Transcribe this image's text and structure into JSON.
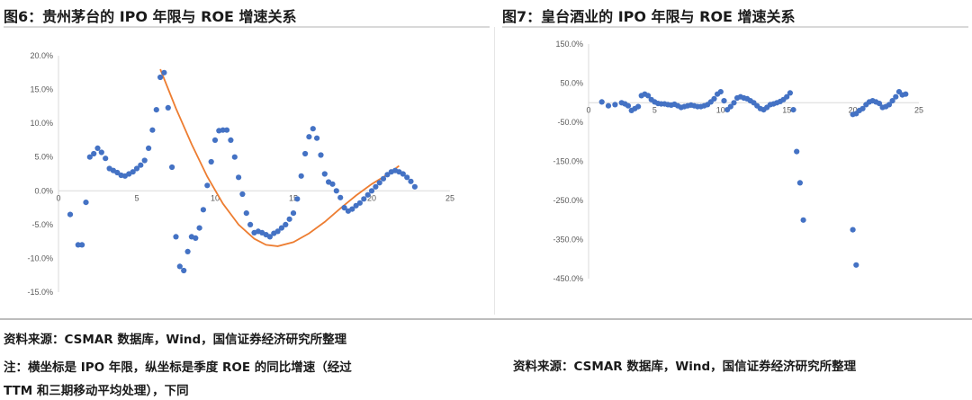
{
  "left": {
    "title": "图6：贵州茅台的 IPO 年限与 ROE 增速关系",
    "source": "资料来源：CSMAR 数据库，Wind，国信证券经济研究所整理",
    "note": "注：横坐标是 IPO 年限，纵坐标是季度 ROE 的同比增速（经过",
    "note2": "TTM 和三期移动平均处理），下同"
  },
  "right": {
    "title": "图7：皇台酒业的 IPO 年限与 ROE 增速关系",
    "source": "资料来源：CSMAR 数据库，Wind，国信证券经济研究所整理"
  },
  "colors": {
    "points": "#4472c4",
    "trend": "#ed7d31",
    "axis": "#d9d9d9",
    "text": "#595959"
  },
  "chart_data": [
    {
      "type": "scatter",
      "title": "图6：贵州茅台的 IPO 年限与 ROE 增速关系",
      "xlabel": "",
      "ylabel": "",
      "xlim": [
        0,
        25
      ],
      "ylim": [
        -15,
        20
      ],
      "x_ticks": [
        "0",
        "5",
        "10",
        "15",
        "20",
        "25"
      ],
      "y_ticks": [
        "20.0%",
        "15.0%",
        "10.0%",
        "5.0%",
        "0.0%",
        "-5.0%",
        "-10.0%",
        "-15.0%"
      ],
      "grid": false,
      "legend": "none",
      "series": [
        {
          "points": [
            [
              0.75,
              -3.5
            ],
            [
              1.25,
              -8.0
            ],
            [
              1.5,
              -8.0
            ],
            [
              1.75,
              -1.7
            ],
            [
              2.0,
              5.0
            ],
            [
              2.25,
              5.5
            ],
            [
              2.5,
              6.3
            ],
            [
              2.75,
              5.7
            ],
            [
              3.0,
              4.8
            ],
            [
              3.25,
              3.3
            ],
            [
              3.5,
              3.0
            ],
            [
              3.75,
              2.7
            ],
            [
              4.0,
              2.3
            ],
            [
              4.25,
              2.2
            ],
            [
              4.5,
              2.5
            ],
            [
              4.75,
              2.8
            ],
            [
              5.0,
              3.3
            ],
            [
              5.25,
              3.8
            ],
            [
              5.5,
              4.5
            ],
            [
              5.75,
              6.3
            ],
            [
              6.0,
              9.0
            ],
            [
              6.25,
              12.0
            ],
            [
              6.5,
              16.8
            ],
            [
              6.75,
              17.5
            ],
            [
              7.0,
              12.3
            ],
            [
              7.25,
              3.5
            ],
            [
              7.5,
              -6.8
            ],
            [
              7.75,
              -11.2
            ],
            [
              8.0,
              -11.8
            ],
            [
              8.25,
              -9.0
            ],
            [
              8.5,
              -6.8
            ],
            [
              8.75,
              -7.0
            ],
            [
              9.0,
              -5.5
            ],
            [
              9.25,
              -2.8
            ],
            [
              9.5,
              0.8
            ],
            [
              9.75,
              4.3
            ],
            [
              10.0,
              7.5
            ],
            [
              10.25,
              8.9
            ],
            [
              10.5,
              9.0
            ],
            [
              10.75,
              9.0
            ],
            [
              11.0,
              7.5
            ],
            [
              11.25,
              5.0
            ],
            [
              11.5,
              2.0
            ],
            [
              11.75,
              -0.5
            ],
            [
              12.0,
              -3.3
            ],
            [
              12.25,
              -5.0
            ],
            [
              12.5,
              -6.2
            ],
            [
              12.75,
              -6.0
            ],
            [
              13.0,
              -6.2
            ],
            [
              13.25,
              -6.5
            ],
            [
              13.5,
              -6.8
            ],
            [
              13.75,
              -6.3
            ],
            [
              14.0,
              -6.0
            ],
            [
              14.25,
              -5.5
            ],
            [
              14.5,
              -5.0
            ],
            [
              14.75,
              -4.2
            ],
            [
              15.0,
              -3.3
            ],
            [
              15.25,
              -1.2
            ],
            [
              15.5,
              2.2
            ],
            [
              15.75,
              5.5
            ],
            [
              16.0,
              8.0
            ],
            [
              16.25,
              9.2
            ],
            [
              16.5,
              7.8
            ],
            [
              16.75,
              5.3
            ],
            [
              17.0,
              2.5
            ],
            [
              17.25,
              1.3
            ],
            [
              17.5,
              1.0
            ],
            [
              17.75,
              0.0
            ],
            [
              18.0,
              -1.0
            ],
            [
              18.25,
              -2.5
            ],
            [
              18.5,
              -3.0
            ],
            [
              18.75,
              -2.7
            ],
            [
              19.0,
              -2.2
            ],
            [
              19.25,
              -1.8
            ],
            [
              19.5,
              -1.2
            ],
            [
              19.75,
              -0.6
            ],
            [
              20.0,
              0.0
            ],
            [
              20.25,
              0.6
            ],
            [
              20.5,
              1.2
            ],
            [
              20.75,
              1.8
            ],
            [
              21.0,
              2.4
            ],
            [
              21.25,
              2.8
            ],
            [
              21.5,
              3.0
            ],
            [
              21.75,
              2.8
            ],
            [
              22.0,
              2.5
            ],
            [
              22.25,
              2.0
            ],
            [
              22.5,
              1.4
            ],
            [
              22.75,
              0.6
            ]
          ]
        },
        {
          "type": "line",
          "style": "trendline",
          "points": [
            [
              6.5,
              18.0
            ],
            [
              7.5,
              12.2
            ],
            [
              8.5,
              6.9
            ],
            [
              9.5,
              2.1
            ],
            [
              10.5,
              -1.9
            ],
            [
              11.5,
              -5.0
            ],
            [
              12.5,
              -7.1
            ],
            [
              13.25,
              -8.0
            ],
            [
              14.0,
              -8.2
            ],
            [
              15.0,
              -7.6
            ],
            [
              16.0,
              -6.3
            ],
            [
              17.0,
              -4.6
            ],
            [
              18.0,
              -2.6
            ],
            [
              19.0,
              -0.7
            ],
            [
              20.0,
              1.0
            ],
            [
              21.0,
              2.4
            ],
            [
              21.75,
              3.7
            ]
          ]
        }
      ]
    },
    {
      "type": "scatter",
      "title": "图7：皇台酒业的 IPO 年限与 ROE 增速关系",
      "xlabel": "",
      "ylabel": "",
      "xlim": [
        0,
        25
      ],
      "ylim": [
        -450,
        150
      ],
      "x_ticks": [
        "0",
        "5",
        "10",
        "15",
        "20",
        "25"
      ],
      "y_ticks": [
        "150.0%",
        "50.0%",
        "-50.0%",
        "-150.0%",
        "-250.0%",
        "-350.0%",
        "-450.0%"
      ],
      "grid": false,
      "legend": "none",
      "series": [
        {
          "points": [
            [
              1.0,
              2.0
            ],
            [
              1.5,
              -8.0
            ],
            [
              2.0,
              -5.0
            ],
            [
              2.5,
              0.0
            ],
            [
              2.75,
              -3.0
            ],
            [
              3.0,
              -8.0
            ],
            [
              3.25,
              -20.0
            ],
            [
              3.5,
              -15.0
            ],
            [
              3.75,
              -10.0
            ],
            [
              4.0,
              18.0
            ],
            [
              4.25,
              22.0
            ],
            [
              4.5,
              18.0
            ],
            [
              4.75,
              8.0
            ],
            [
              5.0,
              2.0
            ],
            [
              5.25,
              -2.0
            ],
            [
              5.5,
              -3.0
            ],
            [
              5.75,
              -3.0
            ],
            [
              6.0,
              -5.0
            ],
            [
              6.25,
              -6.0
            ],
            [
              6.5,
              -4.0
            ],
            [
              6.75,
              -8.0
            ],
            [
              7.0,
              -12.0
            ],
            [
              7.25,
              -10.0
            ],
            [
              7.5,
              -8.0
            ],
            [
              7.75,
              -6.0
            ],
            [
              8.0,
              -8.0
            ],
            [
              8.25,
              -10.0
            ],
            [
              8.5,
              -10.0
            ],
            [
              8.75,
              -8.0
            ],
            [
              9.0,
              -5.0
            ],
            [
              9.25,
              2.0
            ],
            [
              9.5,
              10.0
            ],
            [
              9.75,
              22.0
            ],
            [
              10.0,
              28.0
            ],
            [
              10.25,
              5.0
            ],
            [
              10.5,
              -18.0
            ],
            [
              10.75,
              -10.0
            ],
            [
              11.0,
              0.0
            ],
            [
              11.25,
              12.0
            ],
            [
              11.5,
              15.0
            ],
            [
              11.75,
              12.0
            ],
            [
              12.0,
              10.0
            ],
            [
              12.25,
              5.0
            ],
            [
              12.5,
              0.0
            ],
            [
              12.75,
              -8.0
            ],
            [
              13.0,
              -15.0
            ],
            [
              13.25,
              -18.0
            ],
            [
              13.5,
              -12.0
            ],
            [
              13.75,
              -5.0
            ],
            [
              14.0,
              -3.0
            ],
            [
              14.25,
              0.0
            ],
            [
              14.5,
              3.0
            ],
            [
              14.75,
              8.0
            ],
            [
              15.0,
              15.0
            ],
            [
              15.25,
              25.0
            ],
            [
              15.5,
              -18.0
            ],
            [
              15.75,
              -125.0
            ],
            [
              16.0,
              -205.0
            ],
            [
              16.25,
              -300.0
            ],
            [
              20.0,
              -30.0
            ],
            [
              20.25,
              -28.0
            ],
            [
              20.5,
              -20.0
            ],
            [
              20.75,
              -15.0
            ],
            [
              21.0,
              -5.0
            ],
            [
              21.25,
              2.0
            ],
            [
              21.5,
              5.0
            ],
            [
              21.75,
              2.0
            ],
            [
              22.0,
              -2.0
            ],
            [
              22.25,
              -12.0
            ],
            [
              22.5,
              -10.0
            ],
            [
              22.75,
              -5.0
            ],
            [
              23.0,
              5.0
            ],
            [
              23.25,
              15.0
            ],
            [
              23.5,
              28.0
            ],
            [
              23.75,
              20.0
            ],
            [
              24.0,
              22.0
            ],
            [
              20.0,
              -325.0
            ],
            [
              20.25,
              -415.0
            ]
          ]
        }
      ]
    }
  ]
}
